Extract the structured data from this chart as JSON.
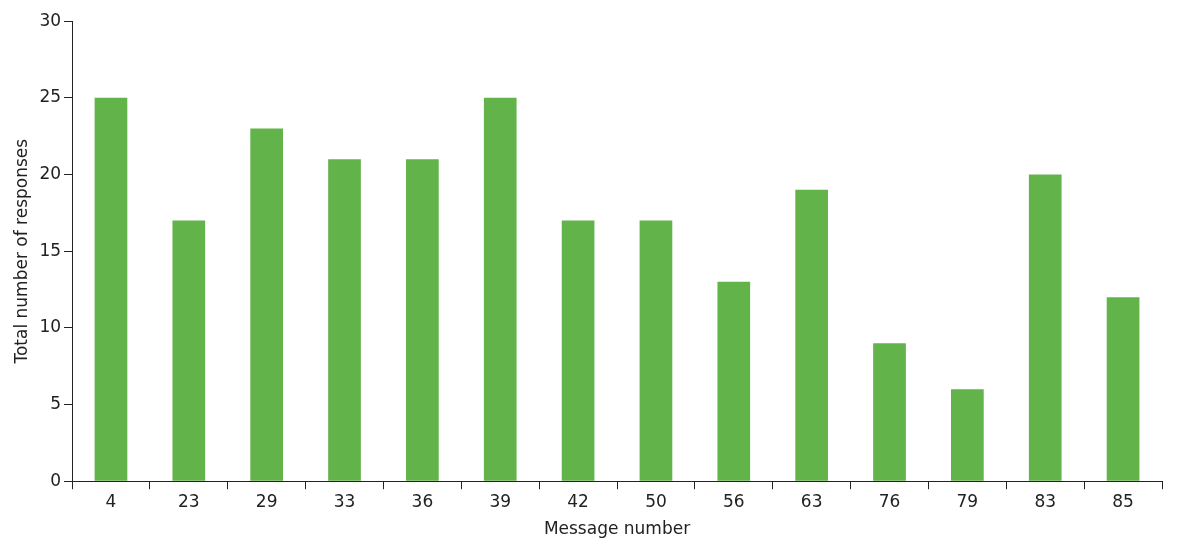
{
  "chart_data": {
    "type": "bar",
    "xlabel": "Message number",
    "ylabel": "Total number of responses",
    "categories": [
      "4",
      "23",
      "29",
      "33",
      "36",
      "39",
      "42",
      "50",
      "56",
      "63",
      "76",
      "79",
      "83",
      "85"
    ],
    "values": [
      25,
      17,
      23,
      21,
      21,
      25,
      17,
      17,
      13,
      19,
      9,
      6,
      20,
      12
    ],
    "color": "#62b34a",
    "ylim": [
      0,
      30
    ],
    "yticks": [
      0,
      5,
      10,
      15,
      20,
      25,
      30
    ]
  }
}
